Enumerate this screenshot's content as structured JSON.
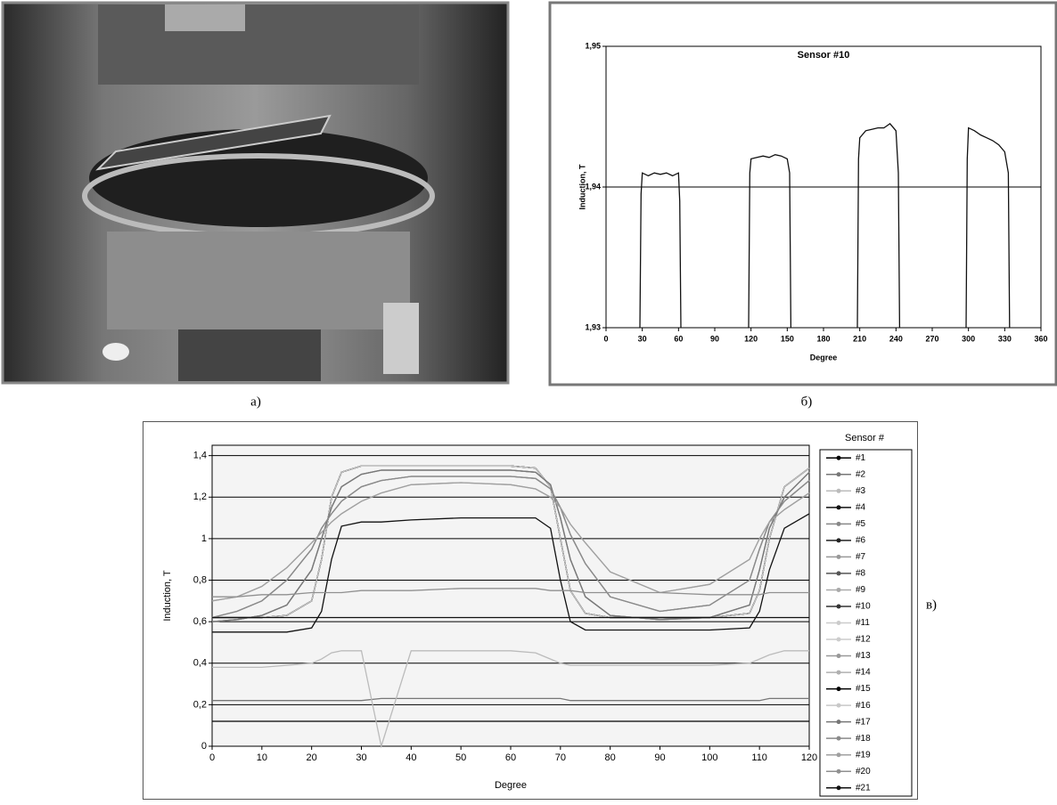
{
  "chart_data": [
    {
      "type": "line",
      "title": "Sensor #10",
      "xlabel": "Degree",
      "ylabel": "Induction, T",
      "x": [
        28,
        29,
        30,
        35,
        40,
        45,
        50,
        55,
        60,
        61,
        62,
        90,
        118,
        119,
        120,
        125,
        130,
        135,
        140,
        145,
        150,
        152,
        153,
        180,
        208,
        209,
        210,
        215,
        220,
        225,
        230,
        235,
        240,
        242,
        243,
        270,
        298,
        299,
        300,
        305,
        310,
        315,
        320,
        325,
        330,
        333,
        334
      ],
      "series": [
        {
          "color": "#111111",
          "values": [
            1.93,
            1.9395,
            1.941,
            1.9408,
            1.941,
            1.9409,
            1.941,
            1.9408,
            1.941,
            1.939,
            1.93,
            null,
            1.93,
            1.941,
            1.942,
            1.9421,
            1.9422,
            1.9421,
            1.9423,
            1.9422,
            1.942,
            1.941,
            1.93,
            null,
            1.93,
            1.942,
            1.9435,
            1.944,
            1.9441,
            1.9442,
            1.9442,
            1.9445,
            1.944,
            1.941,
            1.93,
            null,
            1.93,
            1.942,
            1.9442,
            1.944,
            1.9437,
            1.9435,
            1.9433,
            1.943,
            1.9425,
            1.941,
            1.93
          ]
        }
      ],
      "xlim": [
        0,
        360
      ],
      "xticks": [
        0,
        30,
        60,
        90,
        120,
        150,
        180,
        210,
        240,
        270,
        300,
        330,
        360
      ],
      "ylim": [
        1.93,
        1.95
      ],
      "yticks": [
        {
          "value": 1.93,
          "label": "1,93"
        },
        {
          "value": 1.94,
          "label": "1,94"
        },
        {
          "value": 1.95,
          "label": "1,95"
        }
      ],
      "grid": true,
      "caption": "б)"
    },
    {
      "type": "line",
      "xlabel": "Degree",
      "ylabel": "Induction, T",
      "legend_title": "Sensor #",
      "legend": true,
      "x": [
        0,
        5,
        10,
        15,
        20,
        22,
        24,
        26,
        30,
        34,
        40,
        50,
        60,
        65,
        68,
        70,
        72,
        75,
        80,
        90,
        100,
        108,
        110,
        112,
        115,
        120
      ],
      "xlim": [
        0,
        120
      ],
      "xticks": [
        0,
        10,
        20,
        30,
        40,
        50,
        60,
        70,
        80,
        90,
        100,
        110,
        120
      ],
      "ylim": [
        0,
        1.45
      ],
      "yticks": [
        0,
        {
          "value": 0.2,
          "label": "0,2"
        },
        {
          "value": 0.4,
          "label": "0,4"
        },
        {
          "value": 0.6,
          "label": "0,6"
        },
        {
          "value": 0.8,
          "label": "0,8"
        },
        1,
        {
          "value": 1.2,
          "label": "1,2"
        },
        {
          "value": 1.4,
          "label": "1,4"
        }
      ],
      "grid": true,
      "caption": "в)",
      "series": [
        {
          "name": "#1",
          "color": "#000000",
          "values": [
            0.12,
            0.12,
            0.12,
            0.12,
            0.12,
            0.12,
            0.12,
            0.12,
            0.12,
            0.12,
            0.12,
            0.12,
            0.12,
            0.12,
            0.12,
            0.12,
            0.12,
            0.12,
            0.12,
            0.12,
            0.12,
            0.12,
            0.12,
            0.12,
            0.12,
            0.12
          ]
        },
        {
          "name": "#2",
          "color": "#777777",
          "values": [
            0.22,
            0.22,
            0.22,
            0.22,
            0.22,
            0.22,
            0.22,
            0.22,
            0.22,
            0.23,
            0.23,
            0.23,
            0.23,
            0.23,
            0.23,
            0.23,
            0.22,
            0.22,
            0.22,
            0.22,
            0.22,
            0.22,
            0.22,
            0.23,
            0.23,
            0.23
          ]
        },
        {
          "name": "#3",
          "color": "#bbbbbb",
          "values": [
            0.38,
            0.38,
            0.38,
            0.39,
            0.4,
            0.42,
            0.45,
            0.46,
            0.46,
            0.0,
            0.46,
            0.46,
            0.46,
            0.45,
            0.42,
            0.4,
            0.39,
            0.39,
            0.39,
            0.39,
            0.39,
            0.4,
            0.42,
            0.44,
            0.46,
            0.46
          ]
        },
        {
          "name": "#4",
          "color": "#111111",
          "values": [
            0.55,
            0.55,
            0.55,
            0.55,
            0.57,
            0.65,
            0.9,
            1.06,
            1.08,
            1.08,
            1.09,
            1.1,
            1.1,
            1.1,
            1.05,
            0.8,
            0.6,
            0.56,
            0.56,
            0.56,
            0.56,
            0.57,
            0.65,
            0.85,
            1.05,
            1.12
          ]
        },
        {
          "name": "#5",
          "color": "#888888",
          "values": [
            0.62,
            0.62,
            0.62,
            0.63,
            0.7,
            0.9,
            1.2,
            1.32,
            1.35,
            1.35,
            1.35,
            1.35,
            1.35,
            1.34,
            1.25,
            1.0,
            0.75,
            0.64,
            0.62,
            0.62,
            0.62,
            0.64,
            0.75,
            1.0,
            1.25,
            1.34
          ]
        },
        {
          "name": "#6",
          "color": "#222222",
          "values": [
            0.62,
            0.62,
            0.62,
            0.63,
            0.7,
            0.9,
            1.2,
            1.32,
            1.35,
            1.35,
            1.35,
            1.35,
            1.35,
            1.34,
            1.25,
            1.0,
            0.75,
            0.64,
            0.62,
            0.62,
            0.62,
            0.64,
            0.75,
            1.0,
            1.25,
            1.34
          ]
        },
        {
          "name": "#7",
          "color": "#999999",
          "values": [
            0.6,
            0.61,
            0.63,
            0.68,
            0.85,
            1.0,
            1.15,
            1.25,
            1.31,
            1.33,
            1.33,
            1.33,
            1.33,
            1.32,
            1.26,
            1.1,
            0.9,
            0.72,
            0.63,
            0.61,
            0.62,
            0.68,
            0.85,
            1.05,
            1.2,
            1.32
          ]
        },
        {
          "name": "#8",
          "color": "#555555",
          "values": [
            0.6,
            0.61,
            0.63,
            0.68,
            0.85,
            1.0,
            1.15,
            1.25,
            1.31,
            1.33,
            1.33,
            1.33,
            1.33,
            1.32,
            1.26,
            1.1,
            0.9,
            0.72,
            0.63,
            0.61,
            0.62,
            0.68,
            0.85,
            1.05,
            1.2,
            1.32
          ]
        },
        {
          "name": "#9",
          "color": "#aaaaaa",
          "values": [
            0.62,
            0.65,
            0.7,
            0.8,
            0.95,
            1.05,
            1.12,
            1.18,
            1.25,
            1.28,
            1.3,
            1.3,
            1.3,
            1.29,
            1.24,
            1.15,
            1.02,
            0.88,
            0.72,
            0.65,
            0.68,
            0.8,
            0.95,
            1.08,
            1.18,
            1.28
          ]
        },
        {
          "name": "#10",
          "color": "#333333",
          "values": [
            0.62,
            0.62,
            0.62,
            0.63,
            0.7,
            0.9,
            1.2,
            1.32,
            1.35,
            1.35,
            1.35,
            1.35,
            1.35,
            1.34,
            1.25,
            1.0,
            0.75,
            0.64,
            0.62,
            0.62,
            0.62,
            0.64,
            0.75,
            1.0,
            1.25,
            1.34
          ]
        },
        {
          "name": "#11",
          "color": "#cccccc",
          "values": [
            0.62,
            0.65,
            0.7,
            0.8,
            0.95,
            1.05,
            1.12,
            1.18,
            1.25,
            1.28,
            1.3,
            1.3,
            1.3,
            1.29,
            1.24,
            1.15,
            1.02,
            0.88,
            0.72,
            0.65,
            0.68,
            0.8,
            0.95,
            1.08,
            1.18,
            1.28
          ]
        },
        {
          "name": "#12",
          "color": "#cccccc",
          "values": [
            0.6,
            0.61,
            0.63,
            0.68,
            0.85,
            1.0,
            1.15,
            1.25,
            1.31,
            1.33,
            1.33,
            1.33,
            1.33,
            1.32,
            1.26,
            1.1,
            0.9,
            0.72,
            0.63,
            0.61,
            0.62,
            0.68,
            0.85,
            1.05,
            1.2,
            1.32
          ]
        },
        {
          "name": "#13",
          "color": "#999999",
          "values": [
            0.62,
            0.65,
            0.7,
            0.8,
            0.95,
            1.05,
            1.12,
            1.18,
            1.25,
            1.28,
            1.3,
            1.3,
            1.3,
            1.29,
            1.24,
            1.15,
            1.02,
            0.88,
            0.72,
            0.65,
            0.68,
            0.8,
            0.95,
            1.08,
            1.18,
            1.28
          ]
        },
        {
          "name": "#14",
          "color": "#b0b0b0",
          "values": [
            0.7,
            0.72,
            0.77,
            0.86,
            0.98,
            1.03,
            1.08,
            1.12,
            1.18,
            1.22,
            1.26,
            1.27,
            1.26,
            1.24,
            1.2,
            1.15,
            1.07,
            0.98,
            0.84,
            0.74,
            0.78,
            0.9,
            1.0,
            1.08,
            1.14,
            1.22
          ]
        },
        {
          "name": "#15",
          "color": "#000000",
          "values": [
            0.62,
            0.62,
            0.62,
            0.63,
            0.7,
            0.9,
            1.2,
            1.32,
            1.35,
            1.35,
            1.35,
            1.35,
            1.35,
            1.34,
            1.25,
            1.0,
            0.75,
            0.64,
            0.62,
            0.62,
            0.62,
            0.64,
            0.75,
            1.0,
            1.25,
            1.34
          ]
        },
        {
          "name": "#16",
          "color": "#c8c8c8",
          "values": [
            0.62,
            0.62,
            0.62,
            0.63,
            0.7,
            0.9,
            1.2,
            1.32,
            1.35,
            1.35,
            1.35,
            1.35,
            1.35,
            1.34,
            1.25,
            1.0,
            0.75,
            0.64,
            0.62,
            0.62,
            0.62,
            0.64,
            0.75,
            1.0,
            1.25,
            1.34
          ]
        },
        {
          "name": "#17",
          "color": "#777777",
          "values": [
            0.6,
            0.61,
            0.63,
            0.68,
            0.85,
            1.0,
            1.15,
            1.25,
            1.31,
            1.33,
            1.33,
            1.33,
            1.33,
            1.32,
            1.26,
            1.1,
            0.9,
            0.72,
            0.63,
            0.61,
            0.62,
            0.68,
            0.85,
            1.05,
            1.2,
            1.32
          ]
        },
        {
          "name": "#18",
          "color": "#8a8a8a",
          "values": [
            0.62,
            0.65,
            0.7,
            0.8,
            0.95,
            1.05,
            1.12,
            1.18,
            1.25,
            1.28,
            1.3,
            1.3,
            1.3,
            1.29,
            1.24,
            1.15,
            1.02,
            0.88,
            0.72,
            0.65,
            0.68,
            0.8,
            0.95,
            1.08,
            1.18,
            1.28
          ]
        },
        {
          "name": "#19",
          "color": "#a0a0a0",
          "values": [
            0.7,
            0.72,
            0.77,
            0.86,
            0.98,
            1.03,
            1.08,
            1.12,
            1.18,
            1.22,
            1.26,
            1.27,
            1.26,
            1.24,
            1.2,
            1.15,
            1.07,
            0.98,
            0.84,
            0.74,
            0.78,
            0.9,
            1.0,
            1.08,
            1.14,
            1.22
          ]
        },
        {
          "name": "#20",
          "color": "#909090",
          "values": [
            0.72,
            0.72,
            0.73,
            0.73,
            0.74,
            0.74,
            0.74,
            0.74,
            0.75,
            0.75,
            0.75,
            0.76,
            0.76,
            0.76,
            0.75,
            0.75,
            0.75,
            0.74,
            0.74,
            0.74,
            0.73,
            0.73,
            0.73,
            0.74,
            0.74,
            0.74
          ]
        },
        {
          "name": "#21",
          "color": "#111111",
          "values": [
            0.62,
            0.62,
            0.62,
            0.62,
            0.62,
            0.62,
            0.62,
            0.62,
            0.62,
            0.62,
            0.62,
            0.62,
            0.62,
            0.62,
            0.62,
            0.62,
            0.62,
            0.62,
            0.62,
            0.62,
            0.62,
            0.62,
            0.62,
            0.62,
            0.62,
            0.62
          ]
        }
      ]
    }
  ],
  "photo_caption": "а)"
}
